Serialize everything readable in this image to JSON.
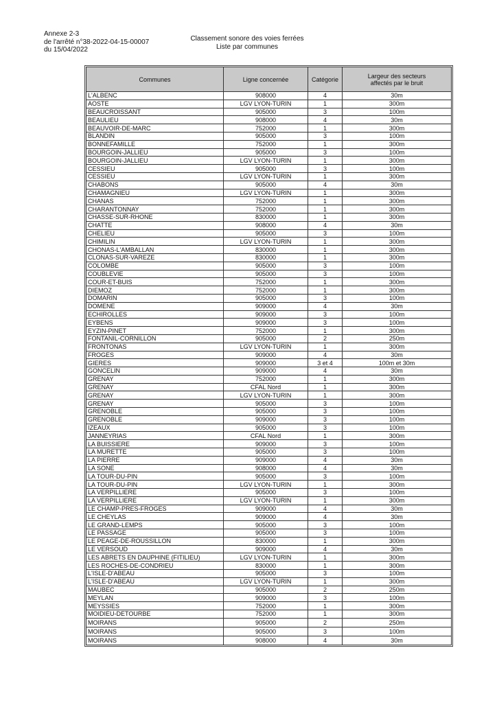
{
  "header": {
    "annex": "Annexe 2-3",
    "decree": "de l'arrêté n°38-2022-04-15-00007",
    "date": "du 15/04/2022",
    "title": "Classement sonore des voies ferrées",
    "subtitle": "Liste par communes"
  },
  "table": {
    "columns": [
      "Communes",
      "Ligne concernée",
      "Catégorie",
      "Largeur des secteurs affectés par le bruit"
    ],
    "rows": [
      [
        "L'ALBENC",
        "908000",
        "4",
        "30m"
      ],
      [
        "AOSTE",
        "LGV  LYON-TURIN",
        "1",
        "300m"
      ],
      [
        "BEAUCROISSANT",
        "905000",
        "3",
        "100m"
      ],
      [
        "BEAULIEU",
        "908000",
        "4",
        "30m"
      ],
      [
        "BEAUVOIR-DE-MARC",
        "752000",
        "1",
        "300m"
      ],
      [
        "BLANDIN",
        "905000",
        "3",
        "100m"
      ],
      [
        "BONNEFAMILLE",
        "752000",
        "1",
        "300m"
      ],
      [
        "BOURGOIN-JALLIEU",
        "905000",
        "3",
        "100m"
      ],
      [
        "BOURGOIN-JALLIEU",
        "LGV  LYON-TURIN",
        "1",
        "300m"
      ],
      [
        "CESSIEU",
        "905000",
        "3",
        "100m"
      ],
      [
        "CESSIEU",
        "LGV  LYON-TURIN",
        "1",
        "300m"
      ],
      [
        "CHABONS",
        "905000",
        "4",
        "30m"
      ],
      [
        "CHAMAGNIEU",
        "LGV  LYON-TURIN",
        "1",
        "300m"
      ],
      [
        "CHANAS",
        "752000",
        "1",
        "300m"
      ],
      [
        "CHARANTONNAY",
        "752000",
        "1",
        "300m"
      ],
      [
        "CHASSE-SUR-RHONE",
        "830000",
        "1",
        "300m"
      ],
      [
        "CHATTE",
        "908000",
        "4",
        "30m"
      ],
      [
        "CHELIEU",
        "905000",
        "3",
        "100m"
      ],
      [
        "CHIMILIN",
        "LGV  LYON-TURIN",
        "1",
        "300m"
      ],
      [
        "CHONAS-L'AMBALLAN",
        "830000",
        "1",
        "300m"
      ],
      [
        "CLONAS-SUR-VAREZE",
        "830000",
        "1",
        "300m"
      ],
      [
        "COLOMBE",
        "905000",
        "3",
        "100m"
      ],
      [
        "COUBLEVIE",
        "905000",
        "3",
        "100m"
      ],
      [
        "COUR-ET-BUIS",
        "752000",
        "1",
        "300m"
      ],
      [
        "DIEMOZ",
        "752000",
        "1",
        "300m"
      ],
      [
        "DOMARIN",
        "905000",
        "3",
        "100m"
      ],
      [
        "DOMENE",
        "909000",
        "4",
        "30m"
      ],
      [
        "ECHIROLLES",
        "909000",
        "3",
        "100m"
      ],
      [
        "EYBENS",
        "909000",
        "3",
        "100m"
      ],
      [
        "EYZIN-PINET",
        "752000",
        "1",
        "300m"
      ],
      [
        "FONTANIL-CORNILLON",
        "905000",
        "2",
        "250m"
      ],
      [
        "FRONTONAS",
        "LGV  LYON-TURIN",
        "1",
        "300m"
      ],
      [
        "FROGES",
        "909000",
        "4",
        "30m"
      ],
      [
        "GIERES",
        "909000",
        "3 et 4",
        "100m et 30m"
      ],
      [
        "GONCELIN",
        "909000",
        "4",
        "30m"
      ],
      [
        "GRENAY",
        "752000",
        "1",
        "300m"
      ],
      [
        "GRENAY",
        "CFAL Nord",
        "1",
        "300m"
      ],
      [
        "GRENAY",
        "LGV  LYON-TURIN",
        "1",
        "300m"
      ],
      [
        "GRENAY",
        "905000",
        "3",
        "100m"
      ],
      [
        "GRENOBLE",
        "905000",
        "3",
        "100m"
      ],
      [
        "GRENOBLE",
        "909000",
        "3",
        "100m"
      ],
      [
        "IZEAUX",
        "905000",
        "3",
        "100m"
      ],
      [
        "JANNEYRIAS",
        "CFAL Nord",
        "1",
        "300m"
      ],
      [
        "LA BUISSIERE",
        "909000",
        "3",
        "100m"
      ],
      [
        "LA MURETTE",
        "905000",
        "3",
        "100m"
      ],
      [
        "LA PIERRE",
        "909000",
        "4",
        "30m"
      ],
      [
        "LA SONE",
        "908000",
        "4",
        "30m"
      ],
      [
        "LA TOUR-DU-PIN",
        "905000",
        "3",
        "100m"
      ],
      [
        "LA TOUR-DU-PIN",
        "LGV  LYON-TURIN",
        "1",
        "300m"
      ],
      [
        "LA VERPILLIERE",
        "905000",
        "3",
        "100m"
      ],
      [
        "LA VERPILLIERE",
        "LGV  LYON-TURIN",
        "1",
        "300m"
      ],
      [
        "LE CHAMP-PRES-FROGES",
        "909000",
        "4",
        "30m"
      ],
      [
        "LE CHEYLAS",
        "909000",
        "4",
        "30m"
      ],
      [
        "LE GRAND-LEMPS",
        "905000",
        "3",
        "100m"
      ],
      [
        "LE PASSAGE",
        "905000",
        "3",
        "100m"
      ],
      [
        "LE PEAGE-DE-ROUSSILLON",
        "830000",
        "1",
        "300m"
      ],
      [
        "LE VERSOUD",
        "909000",
        "4",
        "30m"
      ],
      [
        "LES ABRETS EN DAUPHINE (FITILIEU)",
        "LGV  LYON-TURIN",
        "1",
        "300m"
      ],
      [
        "LES ROCHES-DE-CONDRIEU",
        "830000",
        "1",
        "300m"
      ],
      [
        "L'ISLE-D'ABEAU",
        "905000",
        "3",
        "100m"
      ],
      [
        "L'ISLE-D'ABEAU",
        "LGV  LYON-TURIN",
        "1",
        "300m"
      ],
      [
        "MAUBEC",
        "905000",
        "2",
        "250m"
      ],
      [
        "MEYLAN",
        "909000",
        "3",
        "100m"
      ],
      [
        "MEYSSIES",
        "752000",
        "1",
        "300m"
      ],
      [
        "MOIDIEU-DETOURBE",
        "752000",
        "1",
        "300m"
      ],
      [
        "MOIRANS",
        "905000",
        "2",
        "250m"
      ],
      [
        "MOIRANS",
        "905000",
        "3",
        "100m"
      ],
      [
        "MOIRANS",
        "908000",
        "4",
        "30m"
      ]
    ]
  }
}
